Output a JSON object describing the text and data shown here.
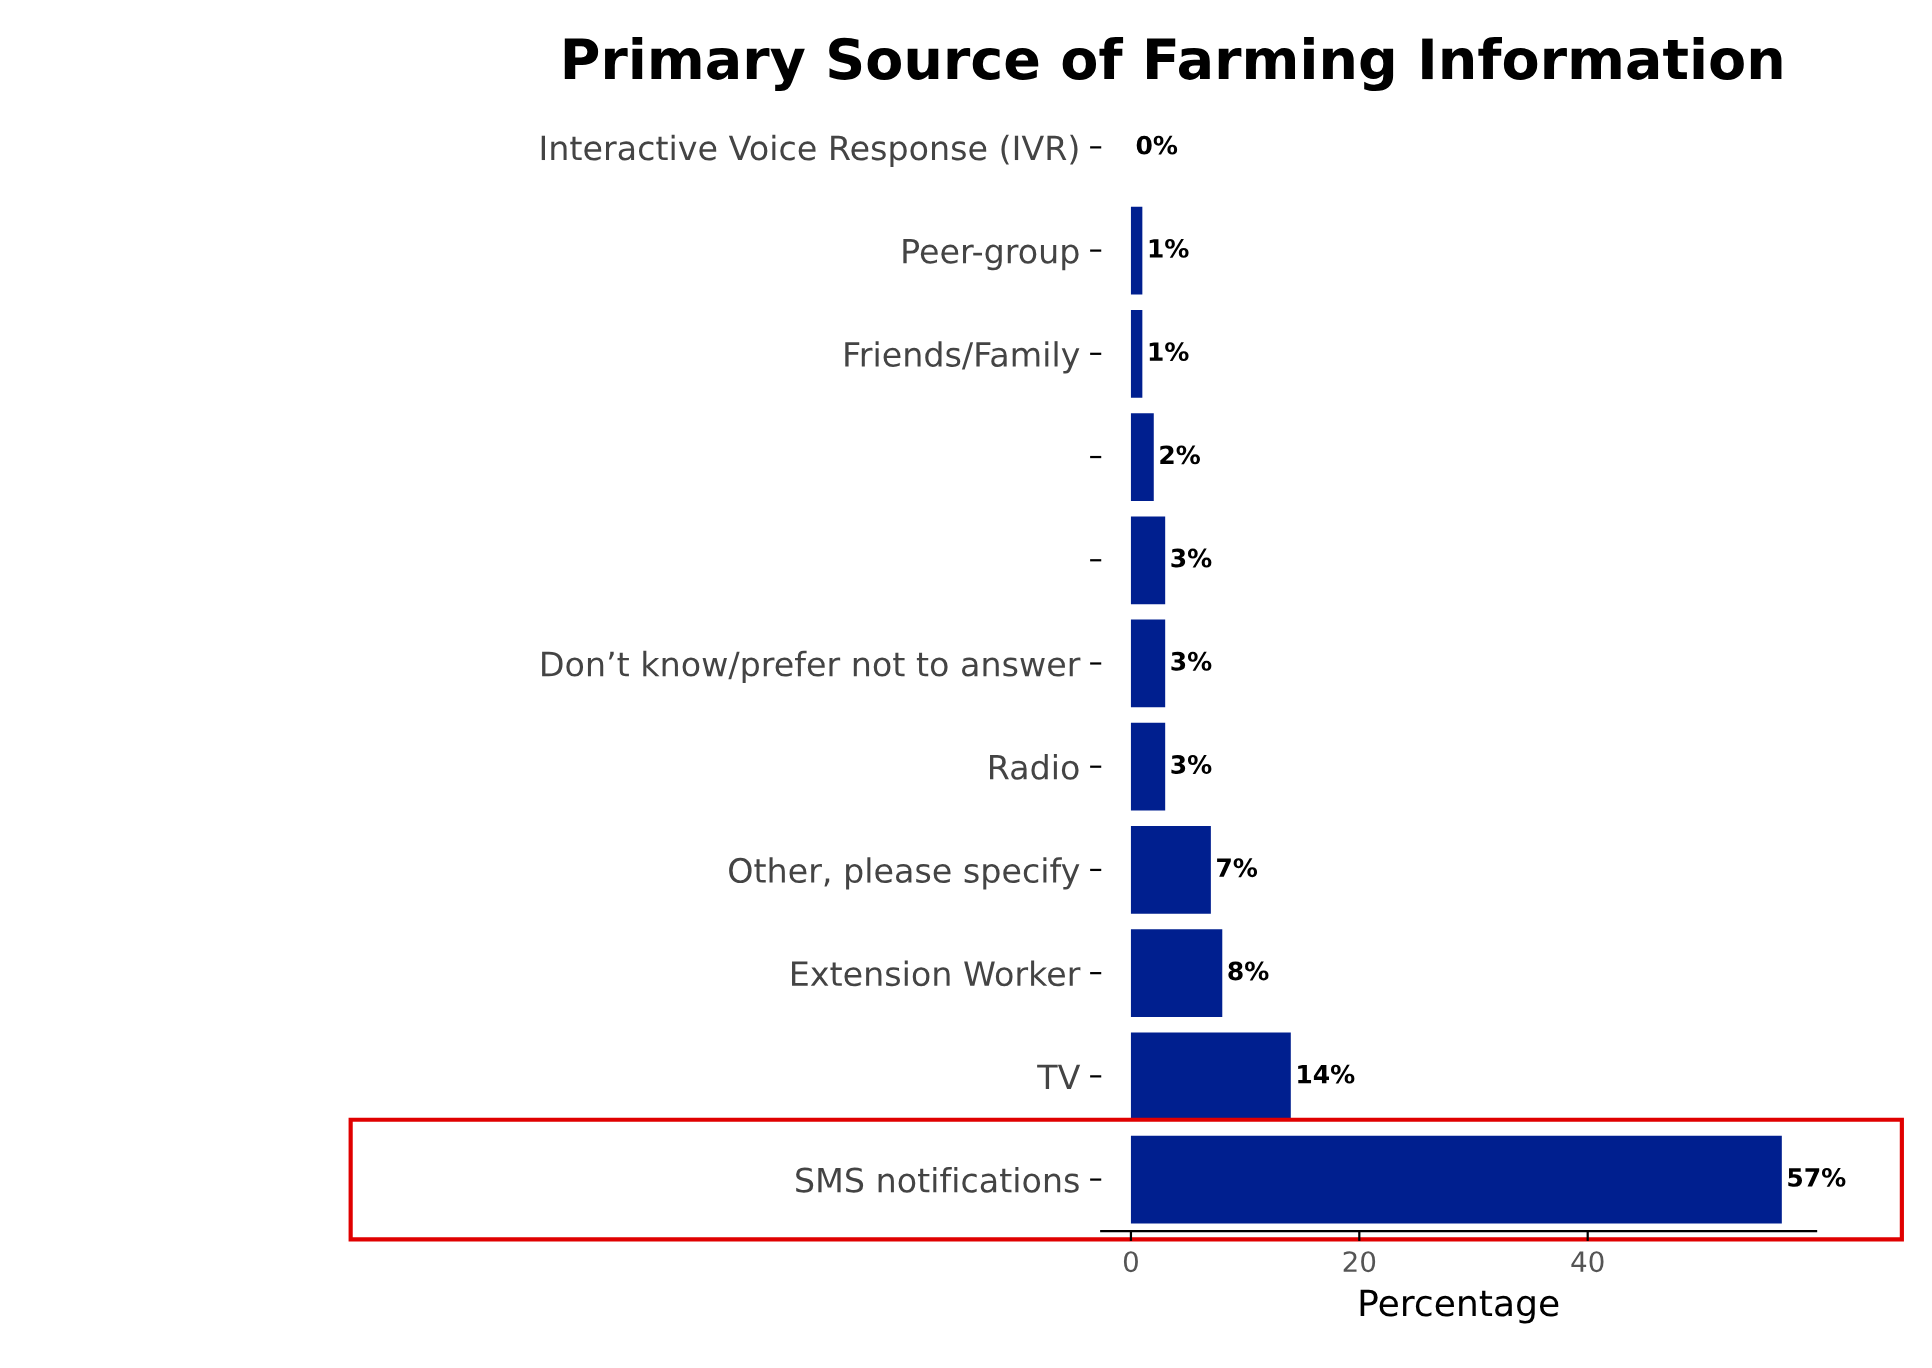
{
  "chart_data": {
    "type": "bar",
    "orientation": "horizontal",
    "title": "Primary Source of Farming Information",
    "xlabel": "Percentage",
    "categories": [
      "Interactive Voice Response (IVR)",
      "Peer-group",
      "Friends/Family",
      null,
      null,
      "Don’t know/prefer not to answer",
      "Radio",
      "Other, please specify",
      "Extension Worker",
      "TV",
      "SMS notifications"
    ],
    "values": [
      0,
      1,
      1,
      2,
      3,
      3,
      3,
      7,
      8,
      14,
      57
    ],
    "value_labels": [
      "0%",
      "1%",
      "1%",
      "2%",
      "3%",
      "3%",
      "3%",
      "7%",
      "8%",
      "14%",
      "57%"
    ],
    "color": "#001f8f",
    "xlim": [
      -2.6,
      60
    ],
    "xticks": [
      0,
      20,
      40
    ],
    "grid": false
  }
}
